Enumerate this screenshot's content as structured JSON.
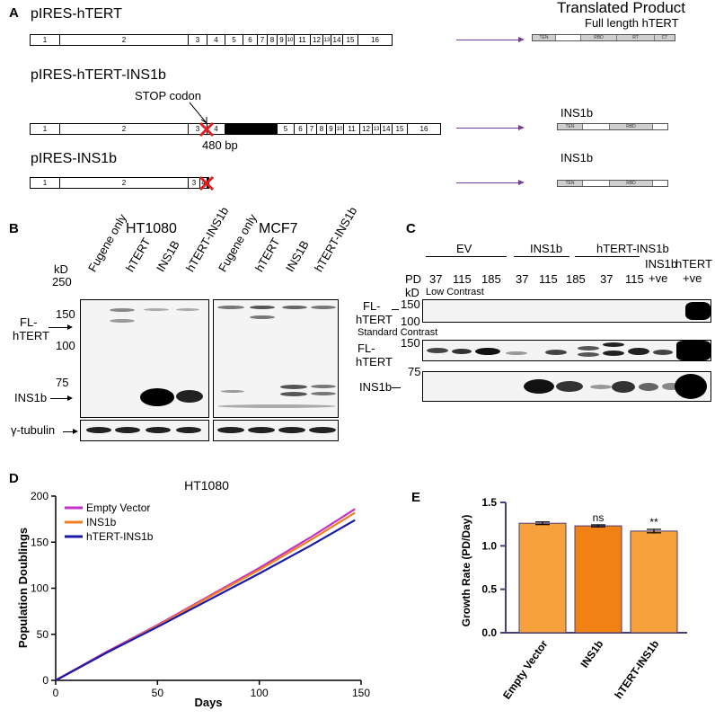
{
  "panelA": {
    "label": "A",
    "translated_header": "Translated Product",
    "constructs": [
      {
        "name": "pIRES-hTERT",
        "exons": [
          "1",
          "2",
          "3",
          "4",
          "5",
          "6",
          "7",
          "8",
          "9",
          "10",
          "11",
          "12",
          "13",
          "14",
          "15",
          "16"
        ],
        "product_title": "Full length hTERT",
        "domains": [
          "TEN",
          "RBD",
          "RT",
          "CT"
        ]
      },
      {
        "name": "pIRES-hTERT-INS1b",
        "exons": [
          "1",
          "2",
          "3",
          "4",
          "",
          "5",
          "6",
          "7",
          "8",
          "9",
          "10",
          "11",
          "12",
          "13",
          "14",
          "15",
          "16"
        ],
        "stop_label": "STOP  codon",
        "insert_label": "480 bp",
        "product_title": "INS1b",
        "domains": [
          "TEN",
          "RBD"
        ]
      },
      {
        "name": "pIRES-INS1b",
        "exons": [
          "1",
          "2",
          "3",
          "4",
          ""
        ],
        "product_title": "INS1b",
        "domains": [
          "TEN",
          "RBD"
        ]
      }
    ]
  },
  "panelB": {
    "label": "B",
    "cell_lines": [
      "HT1080",
      "MCF7"
    ],
    "lanes": [
      "Fugene only",
      "hTERT",
      "INS1B",
      "hTERT-INS1b",
      "Fugene only",
      "hTERT",
      "INS1B",
      "hTERT-INS1b"
    ],
    "kd_label": "kD",
    "markers": [
      "250",
      "150",
      "100",
      "75"
    ],
    "fl_label_1": "FL-",
    "fl_label_2": "hTERT",
    "ins_label": "INS1b",
    "tubulin_label": "γ-tubulin"
  },
  "panelC": {
    "label": "C",
    "groups": [
      "EV",
      "INS1b",
      "hTERT-INS1b"
    ],
    "pd_label": "PD",
    "kd_label": "kD",
    "pds": [
      "37",
      "115",
      "185",
      "37",
      "115",
      "185",
      "37",
      "115",
      "185"
    ],
    "ctrl_ins": [
      "INS1b",
      "+ve"
    ],
    "ctrl_htert": [
      "hTERT",
      "+ve"
    ],
    "low_contrast": "Low Contrast",
    "standard_contrast": "Standard Contrast",
    "fl_label_1": "FL-",
    "fl_label_2": "hTERT",
    "ins_label": "INS1b",
    "marker_150": "150",
    "marker_100": "100",
    "marker_75": "75"
  },
  "panelD": {
    "label": "D"
  },
  "panelE": {
    "label": "E"
  },
  "chart_data": [
    {
      "type": "line",
      "title": "HT1080",
      "xlabel": "Days",
      "ylabel": "Population Doublings",
      "xlim": [
        0,
        150
      ],
      "ylim": [
        0,
        200
      ],
      "xticks": [
        0,
        50,
        100,
        150
      ],
      "yticks": [
        0,
        50,
        100,
        150,
        200
      ],
      "legend_position": "top-left",
      "series": [
        {
          "name": "Empty Vector",
          "color": "#c233c2",
          "x": [
            0,
            25,
            50,
            75,
            100,
            125,
            147
          ],
          "y": [
            0,
            31,
            60,
            91,
            122,
            155,
            186
          ]
        },
        {
          "name": "INS1b",
          "color": "#f07e26",
          "x": [
            0,
            25,
            50,
            75,
            100,
            125,
            147
          ],
          "y": [
            0,
            30,
            59,
            90,
            120,
            152,
            182
          ]
        },
        {
          "name": "hTERT-INS1b",
          "color": "#1a1aa6",
          "x": [
            0,
            25,
            50,
            75,
            100,
            125,
            147
          ],
          "y": [
            0,
            30,
            58,
            87,
            116,
            146,
            174
          ]
        }
      ]
    },
    {
      "type": "bar",
      "title": "",
      "xlabel": "",
      "ylabel": "Growth Rate (PD/Day)",
      "ylim": [
        0,
        1.5
      ],
      "yticks": [
        "0.0",
        "0.5",
        "1.0",
        "1.5"
      ],
      "categories": [
        "Empty Vector",
        "INS1b",
        "hTERT-INS1b"
      ],
      "values": [
        1.26,
        1.23,
        1.17
      ],
      "errors": [
        0.015,
        0.012,
        0.02
      ],
      "annotations": [
        "",
        "ns",
        "**"
      ],
      "colors": [
        "#f6a13c",
        "#f28113",
        "#f6a13c"
      ]
    }
  ]
}
